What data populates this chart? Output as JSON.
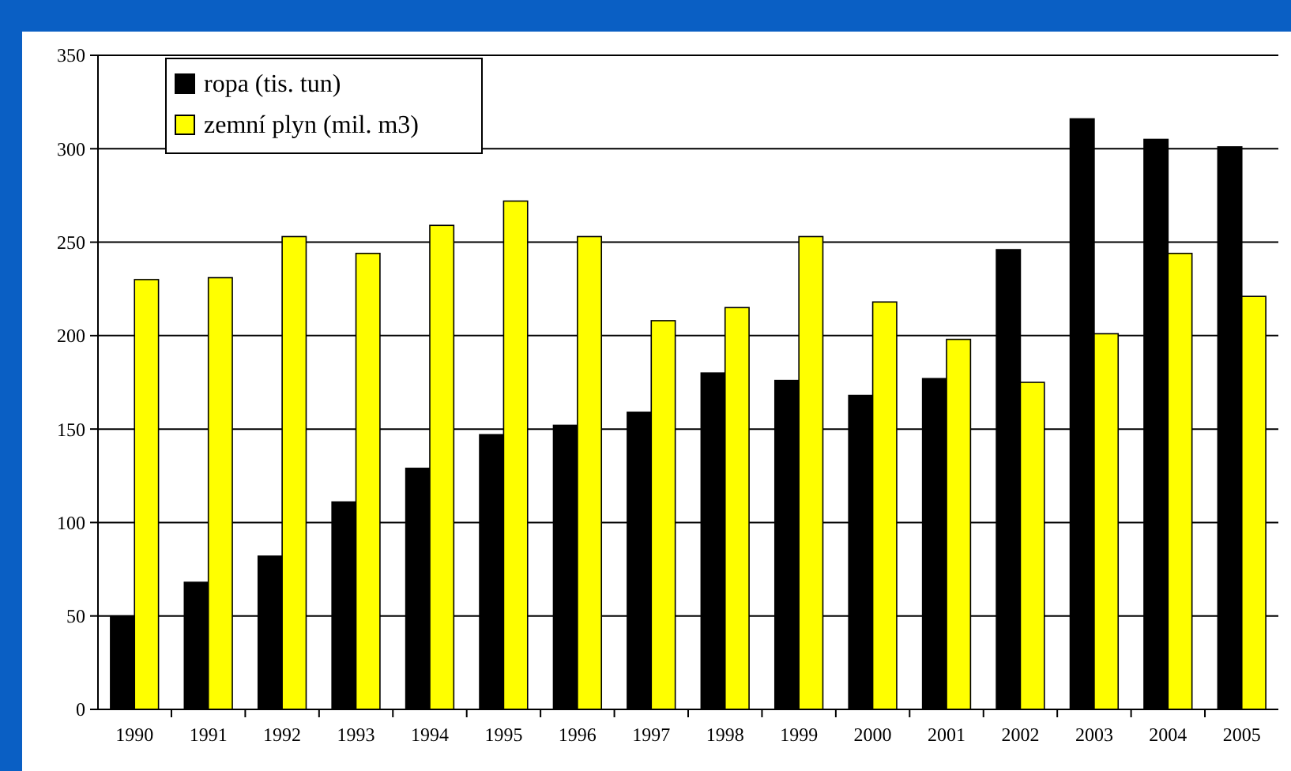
{
  "chart_data": {
    "type": "bar",
    "categories": [
      "1990",
      "1991",
      "1992",
      "1993",
      "1994",
      "1995",
      "1996",
      "1997",
      "1998",
      "1999",
      "2000",
      "2001",
      "2002",
      "2003",
      "2004",
      "2005"
    ],
    "series": [
      {
        "name": "ropa (tis. tun)",
        "color": "#000000",
        "values": [
          50,
          68,
          82,
          111,
          129,
          147,
          152,
          159,
          180,
          176,
          168,
          177,
          246,
          316,
          305,
          301
        ]
      },
      {
        "name": "zemní plyn (mil. m3)",
        "color": "#ffff00",
        "values": [
          230,
          231,
          253,
          244,
          259,
          272,
          253,
          208,
          215,
          253,
          218,
          198,
          175,
          201,
          244,
          221
        ]
      }
    ],
    "ylim": [
      0,
      350
    ],
    "yticks": [
      0,
      50,
      100,
      150,
      200,
      250,
      300,
      350
    ],
    "grid": "y",
    "legend": "top left"
  }
}
